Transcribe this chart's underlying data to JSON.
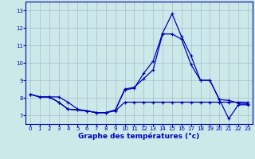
{
  "title": "Graphe des températures (°c)",
  "bg_color": "#cce8e8",
  "line_color": "#0000bb",
  "grid_color": "#aabbcc",
  "xlim": [
    -0.5,
    23.5
  ],
  "ylim": [
    6.5,
    13.5
  ],
  "yticks": [
    7,
    8,
    9,
    10,
    11,
    12,
    13
  ],
  "xticks": [
    0,
    1,
    2,
    3,
    4,
    5,
    6,
    7,
    8,
    9,
    10,
    11,
    12,
    13,
    14,
    15,
    16,
    17,
    18,
    19,
    20,
    21,
    22,
    23
  ],
  "line1_x": [
    0,
    1,
    2,
    3,
    4,
    5,
    6,
    7,
    8,
    9,
    10,
    11,
    12,
    13,
    14,
    15,
    16,
    17,
    18,
    19,
    20,
    21,
    22,
    23
  ],
  "line1_y": [
    8.2,
    8.05,
    8.05,
    7.75,
    7.35,
    7.3,
    7.25,
    7.15,
    7.15,
    7.25,
    7.75,
    7.75,
    7.75,
    7.75,
    7.75,
    7.75,
    7.75,
    7.75,
    7.75,
    7.75,
    7.75,
    7.75,
    7.75,
    7.75
  ],
  "line2_x": [
    0,
    1,
    2,
    3,
    4,
    5,
    6,
    7,
    8,
    9,
    10,
    11,
    12,
    13,
    14,
    15,
    16,
    17,
    18,
    19,
    20,
    21,
    22,
    23
  ],
  "line2_y": [
    8.2,
    8.05,
    8.05,
    8.05,
    7.75,
    7.35,
    7.25,
    7.15,
    7.15,
    7.3,
    8.5,
    8.6,
    9.1,
    9.6,
    11.65,
    11.65,
    11.35,
    9.9,
    9.0,
    9.0,
    7.9,
    7.85,
    7.7,
    7.65
  ],
  "line3_x": [
    0,
    1,
    2,
    3,
    4,
    5,
    6,
    7,
    8,
    9,
    10,
    11,
    12,
    13,
    14,
    15,
    16,
    17,
    18,
    19,
    20,
    21,
    22,
    23
  ],
  "line3_y": [
    8.2,
    8.05,
    8.05,
    7.75,
    7.35,
    7.3,
    7.25,
    7.15,
    7.15,
    7.3,
    8.45,
    8.55,
    9.4,
    10.1,
    11.7,
    12.8,
    11.5,
    10.4,
    9.0,
    9.0,
    7.9,
    6.8,
    7.6,
    7.6
  ],
  "figsize": [
    3.2,
    2.0
  ],
  "dpi": 100
}
